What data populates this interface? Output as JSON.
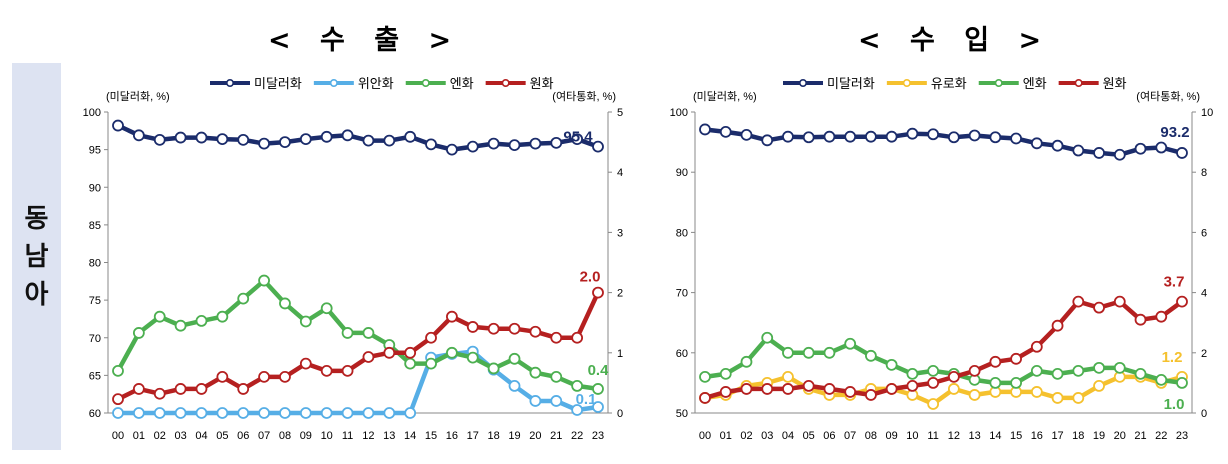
{
  "region_label": "동남아",
  "chart_data": [
    {
      "type": "line",
      "title": "< 수  출 >",
      "left_axis_label": "(미달러화, %)",
      "right_axis_label": "(여타통화, %)",
      "ylim_left": [
        60,
        100
      ],
      "yticks_left": [
        60,
        65,
        70,
        75,
        80,
        85,
        90,
        95,
        100
      ],
      "ylim_right": [
        0,
        5
      ],
      "yticks_right": [
        0,
        1,
        2,
        3,
        4,
        5
      ],
      "x": [
        "00",
        "01",
        "02",
        "03",
        "04",
        "05",
        "06",
        "07",
        "08",
        "09",
        "10",
        "11",
        "12",
        "13",
        "14",
        "15",
        "16",
        "17",
        "18",
        "19",
        "20",
        "21",
        "22",
        "23"
      ],
      "series": [
        {
          "name": "미달러화",
          "color": "#1b2c6b",
          "axis": "left",
          "values": [
            98.2,
            96.9,
            96.3,
            96.6,
            96.6,
            96.4,
            96.3,
            95.8,
            96.0,
            96.4,
            96.7,
            96.9,
            96.2,
            96.2,
            96.7,
            95.7,
            95.0,
            95.4,
            95.8,
            95.6,
            95.8,
            95.9,
            96.4,
            95.4
          ],
          "end_label": "95.4"
        },
        {
          "name": "위안화",
          "color": "#56aee6",
          "axis": "right",
          "values": [
            0,
            0,
            0,
            0,
            0,
            0,
            0,
            0,
            0,
            0,
            0,
            0,
            0,
            0,
            0,
            0.92,
            0.98,
            1.02,
            0.72,
            0.45,
            0.2,
            0.2,
            0.05,
            0.1
          ],
          "end_label": "0.1"
        },
        {
          "name": "엔화",
          "color": "#4caf50",
          "axis": "right",
          "values": [
            0.7,
            1.33,
            1.6,
            1.45,
            1.53,
            1.6,
            1.9,
            2.2,
            1.82,
            1.52,
            1.74,
            1.33,
            1.33,
            1.13,
            0.82,
            0.82,
            1.0,
            0.92,
            0.74,
            0.9,
            0.67,
            0.6,
            0.45,
            0.4
          ],
          "end_label": "0.4"
        },
        {
          "name": "원화",
          "color": "#b52020",
          "axis": "right",
          "values": [
            0.23,
            0.4,
            0.32,
            0.4,
            0.4,
            0.6,
            0.4,
            0.6,
            0.6,
            0.82,
            0.7,
            0.7,
            0.93,
            1.0,
            1.0,
            1.25,
            1.6,
            1.43,
            1.4,
            1.4,
            1.35,
            1.25,
            1.25,
            2.0
          ],
          "end_label": "2.0"
        }
      ]
    },
    {
      "type": "line",
      "title": "< 수  입 >",
      "left_axis_label": "(미달러화, %)",
      "right_axis_label": "(여타통화, %)",
      "ylim_left": [
        50,
        100
      ],
      "yticks_left": [
        50,
        60,
        70,
        80,
        90,
        100
      ],
      "ylim_right": [
        0,
        10
      ],
      "yticks_right": [
        0,
        2,
        4,
        6,
        8,
        10
      ],
      "x": [
        "00",
        "01",
        "02",
        "03",
        "04",
        "05",
        "06",
        "07",
        "08",
        "09",
        "10",
        "11",
        "12",
        "13",
        "14",
        "15",
        "16",
        "17",
        "18",
        "19",
        "20",
        "21",
        "22",
        "23"
      ],
      "series": [
        {
          "name": "미달러화",
          "color": "#1b2c6b",
          "axis": "left",
          "values": [
            97.1,
            96.7,
            96.2,
            95.3,
            95.9,
            95.8,
            95.9,
            95.9,
            95.9,
            95.9,
            96.4,
            96.3,
            95.8,
            96.1,
            95.8,
            95.6,
            94.8,
            94.4,
            93.6,
            93.2,
            92.9,
            93.9,
            94.1,
            93.2
          ],
          "end_label": "93.2"
        },
        {
          "name": "유로화",
          "color": "#f5c12e",
          "axis": "right",
          "values": [
            0.5,
            0.6,
            0.9,
            1.0,
            1.2,
            0.8,
            0.6,
            0.6,
            0.8,
            0.8,
            0.6,
            0.3,
            0.8,
            0.6,
            0.7,
            0.7,
            0.7,
            0.5,
            0.5,
            0.9,
            1.2,
            1.2,
            1.0,
            1.2
          ],
          "end_label": "1.2"
        },
        {
          "name": "엔화",
          "color": "#4caf50",
          "axis": "right",
          "values": [
            1.2,
            1.3,
            1.7,
            2.5,
            2.0,
            2.0,
            2.0,
            2.3,
            1.9,
            1.6,
            1.3,
            1.4,
            1.3,
            1.1,
            1.0,
            1.0,
            1.4,
            1.3,
            1.4,
            1.5,
            1.5,
            1.3,
            1.1,
            1.0
          ],
          "end_label": "1.0"
        },
        {
          "name": "원화",
          "color": "#b52020",
          "axis": "right",
          "values": [
            0.5,
            0.7,
            0.8,
            0.8,
            0.8,
            0.9,
            0.8,
            0.7,
            0.6,
            0.8,
            0.9,
            1.0,
            1.2,
            1.4,
            1.7,
            1.8,
            2.2,
            2.9,
            3.7,
            3.5,
            3.7,
            3.1,
            3.2,
            3.7
          ],
          "end_label": "3.7"
        }
      ]
    }
  ]
}
